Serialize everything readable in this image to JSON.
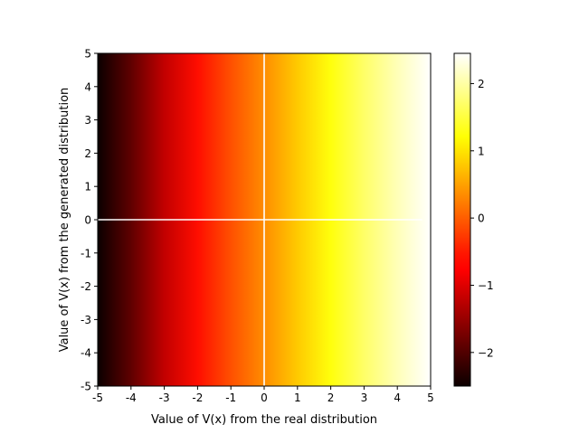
{
  "chart_data": {
    "type": "heatmap",
    "title": "",
    "xlabel": "Value of V(x) from the real distribution",
    "ylabel": "Value of V(x) from the generated distribution",
    "xlim": [
      -5,
      5
    ],
    "ylim": [
      -5,
      5
    ],
    "x_ticks": [
      -5,
      -4,
      -3,
      -2,
      -1,
      0,
      1,
      2,
      3,
      4,
      5
    ],
    "y_ticks": [
      -5,
      -4,
      -3,
      -2,
      -1,
      0,
      1,
      2,
      3,
      4,
      5
    ],
    "x_tick_labels": [
      "-5",
      "-4",
      "-3",
      "-2",
      "-1",
      "0",
      "1",
      "2",
      "3",
      "4",
      "5"
    ],
    "y_tick_labels": [
      "-5",
      "-4",
      "-3",
      "-2",
      "-1",
      "0",
      "1",
      "2",
      "3",
      "4",
      "5"
    ],
    "colormap": "hot",
    "value_range": [
      -2.5,
      2.45
    ],
    "value_varies_along": "x",
    "value_profile": {
      "x": [
        -5,
        -4,
        -3,
        -2,
        -1,
        0,
        1,
        2,
        3,
        4,
        5
      ],
      "value": [
        -2.5,
        -1.9,
        -1.2,
        -0.6,
        -0.1,
        0.35,
        0.8,
        1.25,
        1.7,
        2.1,
        2.45
      ]
    },
    "colorbar": {
      "ticks": [
        -2,
        -1,
        0,
        1,
        2
      ],
      "tick_labels": [
        "−2",
        "−1",
        "0",
        "1",
        "2"
      ]
    },
    "reference_lines": [
      {
        "orientation": "vertical",
        "x": 0,
        "color": "#ffffff"
      },
      {
        "orientation": "horizontal",
        "y": 0,
        "color": "#ffffff"
      }
    ],
    "grid": false,
    "legend": "none"
  }
}
